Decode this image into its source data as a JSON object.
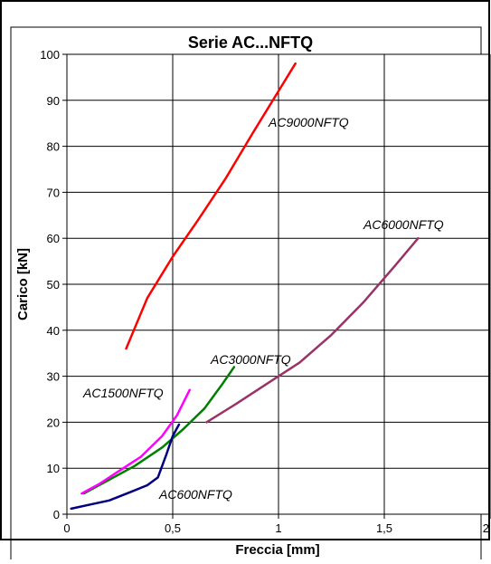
{
  "chart_data": {
    "type": "line",
    "title": "Serie AC...NFTQ",
    "xlabel": "Freccia [mm]",
    "ylabel": "Carico [kN]",
    "xlim": [
      0,
      2
    ],
    "ylim": [
      0,
      100
    ],
    "x_ticks": [
      0,
      0.5,
      1,
      1.5,
      2
    ],
    "x_tick_labels": [
      "0",
      "0,5",
      "1",
      "1,5",
      "2"
    ],
    "y_ticks": [
      0,
      10,
      20,
      30,
      40,
      50,
      60,
      70,
      80,
      90,
      100
    ],
    "y_tick_labels": [
      "0",
      "10",
      "20",
      "30",
      "40",
      "50",
      "60",
      "70",
      "80",
      "90",
      "100"
    ],
    "grid": true,
    "legend": "none",
    "series": [
      {
        "name": "AC9000NFTQ",
        "color": "#ff0000",
        "x": [
          0.28,
          0.38,
          0.5,
          0.62,
          0.75,
          0.88,
          1.0,
          1.08
        ],
        "y": [
          36,
          47,
          56,
          64,
          73,
          83,
          92,
          98
        ]
      },
      {
        "name": "AC6000NFTQ",
        "color": "#993366",
        "x": [
          0.66,
          0.8,
          0.95,
          1.1,
          1.25,
          1.4,
          1.55,
          1.66
        ],
        "y": [
          20,
          24,
          28.5,
          33,
          39,
          46,
          54,
          60
        ]
      },
      {
        "name": "AC3000NFTQ",
        "color": "#008000",
        "x": [
          0.08,
          0.2,
          0.32,
          0.45,
          0.55,
          0.65,
          0.73,
          0.79
        ],
        "y": [
          4.5,
          7.5,
          10.5,
          14.5,
          18.5,
          23,
          28,
          32
        ]
      },
      {
        "name": "AC1500NFTQ",
        "color": "#ff00ff",
        "x": [
          0.07,
          0.15,
          0.25,
          0.35,
          0.45,
          0.52,
          0.58
        ],
        "y": [
          4.5,
          6.5,
          9.5,
          12.5,
          17,
          21.5,
          27
        ]
      },
      {
        "name": "AC600NFTQ",
        "color": "#000080",
        "x": [
          0.02,
          0.12,
          0.2,
          0.3,
          0.38,
          0.43,
          0.47,
          0.5,
          0.53
        ],
        "y": [
          1.2,
          2.2,
          3,
          4.8,
          6.3,
          8,
          13,
          17,
          19.5
        ]
      }
    ]
  }
}
